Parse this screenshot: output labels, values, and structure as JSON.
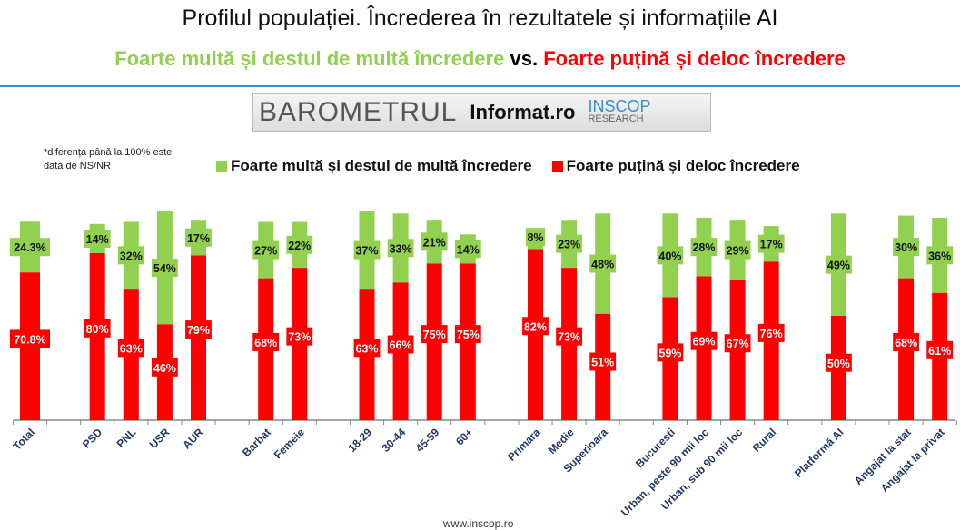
{
  "header": {
    "title": "Profilul populației. Încrederea în rezultatele și informațiile AI",
    "subtitle_green": "Foarte multă și destul de multă încredere",
    "subtitle_vs": "vs.",
    "subtitle_red": "Foarte puțină și deloc încredere"
  },
  "logo": {
    "barometrul": "BAROMETRUL",
    "informat": "Informat.ro",
    "inscop": "INSCOP",
    "research": "RESEARCH"
  },
  "note": "*diferența până la 100% este dată de NS/NR",
  "footer": "www.inscop.ro",
  "colors": {
    "green": "#92d050",
    "red": "#ff0000",
    "axis_label": "#1f3864"
  },
  "chart_data": {
    "type": "bar",
    "stacked": true,
    "title": "Profilul populației. Încrederea în rezultatele și informațiile AI",
    "legend_position": "top",
    "categories": [
      "Total",
      "",
      "PSD",
      "PNL",
      "USR",
      "AUR",
      "",
      "Barbat",
      "Femeie",
      "",
      "18-29",
      "30-44",
      "45-59",
      "60+",
      "",
      "Primara",
      "Medie",
      "Superioara",
      "",
      "Bucuresti",
      "Urban, peste 90 mii loc",
      "Urban, sub 90 mii loc",
      "Rural",
      "",
      "Platformă AI",
      "",
      "Angajat la stat",
      "Angajat la privat"
    ],
    "series": [
      {
        "name": "Foarte puțină și deloc încredere",
        "color": "#ff0000",
        "values": [
          70.8,
          null,
          80,
          63,
          46,
          79,
          null,
          68,
          73,
          null,
          63,
          66,
          75,
          75,
          null,
          82,
          73,
          51,
          null,
          59,
          69,
          67,
          76,
          null,
          50,
          null,
          68,
          61
        ],
        "labels": [
          "70.8%",
          "",
          "80%",
          "63%",
          "46%",
          "79%",
          "",
          "68%",
          "73%",
          "",
          "63%",
          "66%",
          "75%",
          "75%",
          "",
          "82%",
          "73%",
          "51%",
          "",
          "59%",
          "69%",
          "67%",
          "76%",
          "",
          "50%",
          "",
          "68%",
          "61%"
        ]
      },
      {
        "name": "Foarte multă și destul de multă încredere",
        "color": "#92d050",
        "values": [
          24.3,
          null,
          14,
          32,
          54,
          17,
          null,
          27,
          22,
          null,
          37,
          33,
          21,
          14,
          null,
          8,
          23,
          48,
          null,
          40,
          28,
          29,
          17,
          null,
          49,
          null,
          30,
          36
        ],
        "labels": [
          "24.3%",
          "",
          "14%",
          "32%",
          "54%",
          "17%",
          "",
          "27%",
          "22%",
          "",
          "37%",
          "33%",
          "21%",
          "14%",
          "",
          "8%",
          "23%",
          "48%",
          "",
          "40%",
          "28%",
          "29%",
          "17%",
          "",
          "49%",
          "",
          "30%",
          "36%"
        ]
      }
    ],
    "ylim": [
      0,
      100
    ],
    "grid": false
  }
}
